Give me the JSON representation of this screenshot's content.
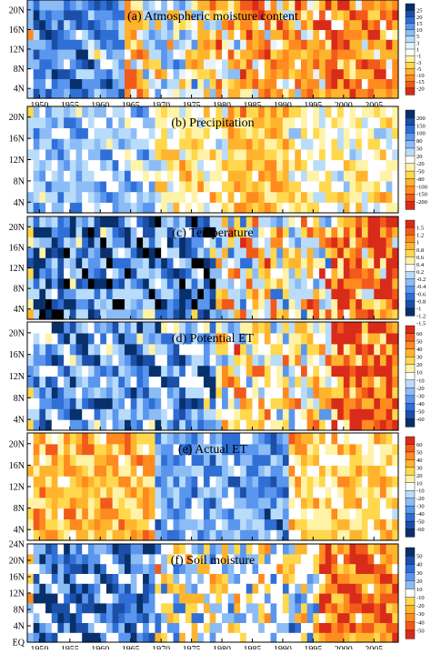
{
  "chart_data": [
    {
      "type": "heatmap",
      "title": "(a)   Atmospheric moisture content",
      "x_ticks": [
        "1950",
        "1955",
        "1960",
        "1965",
        "1970",
        "1975",
        "1980",
        "1985",
        "1990",
        "1995",
        "2000",
        "2005"
      ],
      "y_ticks": [
        "4N",
        "8N",
        "12N",
        "16N",
        "20N"
      ],
      "xlim": [
        1948,
        2009
      ],
      "ylim": [
        2,
        22
      ],
      "colorbar": [
        "25",
        "20",
        "15",
        "10",
        "5",
        "3",
        "1",
        "-1",
        "-3",
        "-5",
        "-10",
        "-15",
        "-20"
      ],
      "colors": [
        "#08306b",
        "#1c4fa8",
        "#2f6fd6",
        "#5a96ee",
        "#8cbcf5",
        "#b9dcfa",
        "#e6f3fd",
        "#ffffff",
        "#fff3a8",
        "#ffd84d",
        "#ffb42e",
        "#ff8a1f",
        "#f25a1b",
        "#d92b1a"
      ],
      "pattern": "Wet (positive, blue) 1949-1963, drying through 1965-1975, strongly negative (orange-red) 1980s-2000s especially 1997-2006",
      "period_values": [
        {
          "years": "1949-1956",
          "value": 15
        },
        {
          "years": "1957-1963",
          "value": 12
        },
        {
          "years": "1964-1966",
          "value": -8
        },
        {
          "years": "1967-1975",
          "value": 2
        },
        {
          "years": "1976-1982",
          "value": -5
        },
        {
          "years": "1983-1996",
          "value": -8
        },
        {
          "years": "1997-2008",
          "value": -12
        }
      ]
    },
    {
      "type": "heatmap",
      "title": "(b)   Precipitation",
      "x_ticks": [
        "1950",
        "1955",
        "1960",
        "1965",
        "1970",
        "1975",
        "1980",
        "1985",
        "1990",
        "1995",
        "2000",
        "2005"
      ],
      "y_ticks": [
        "4N",
        "8N",
        "12N",
        "16N",
        "20N"
      ],
      "xlim": [
        1948,
        2009
      ],
      "ylim": [
        2,
        22
      ],
      "colorbar": [
        "200",
        "150",
        "100",
        "80",
        "50",
        "20",
        "-20",
        "-50",
        "-80",
        "-100",
        "-150",
        "-200"
      ],
      "colors": [
        "#08306b",
        "#1c4fa8",
        "#2f6fd6",
        "#5a96ee",
        "#8cbcf5",
        "#b9dcfa",
        "#ffffff",
        "#fff3a8",
        "#ffd84d",
        "#ffb42e",
        "#ff8a1f",
        "#f25a1b",
        "#d92b1a"
      ],
      "pattern": "Mostly positive (blue) 1949-1968, mixed, mainly negative (yellow-red) 1970-1990, mixed afterwards",
      "period_values": [
        {
          "years": "1949-1968",
          "value": 50
        },
        {
          "years": "1969-1980",
          "value": -30
        },
        {
          "years": "1981-1990",
          "value": -80
        },
        {
          "years": "1991-2008",
          "value": -20
        }
      ]
    },
    {
      "type": "heatmap",
      "title": "(c)   Temperature",
      "x_ticks": [
        "1950",
        "1955",
        "1960",
        "1965",
        "1970",
        "1975",
        "1980",
        "1985",
        "1990",
        "1995",
        "2000",
        "2005"
      ],
      "y_ticks": [
        "4N",
        "8N",
        "12N",
        "16N",
        "20N"
      ],
      "xlim": [
        1948,
        2009
      ],
      "ylim": [
        2,
        22
      ],
      "colorbar": [
        "1.5",
        "1.2",
        "1",
        "0.8",
        "0.6",
        "0.4",
        "0.2",
        "-0.2",
        "-0.4",
        "-0.6",
        "-0.8",
        "-1",
        "-1.2",
        "-1.5"
      ],
      "colors": [
        "#d92b1a",
        "#f25a1b",
        "#ff8a1f",
        "#ffb42e",
        "#ffd84d",
        "#fff3a8",
        "#ffffff",
        "#b9dcfa",
        "#8cbcf5",
        "#5a96ee",
        "#2f6fd6",
        "#1c4fa8",
        "#08306b"
      ],
      "pattern": "Cool (blue) 1949-1978, warming from late 1970s, strongly warm (red) 1998-2008",
      "period_values": [
        {
          "years": "1949-1978",
          "value": -0.6
        },
        {
          "years": "1979-1997",
          "value": 0.4
        },
        {
          "years": "1998-2008",
          "value": 1.2
        }
      ]
    },
    {
      "type": "heatmap",
      "title": "(d)   Potential ET",
      "x_ticks": [
        "1950",
        "1955",
        "1960",
        "1965",
        "1970",
        "1975",
        "1980",
        "1985",
        "1990",
        "1995",
        "2000",
        "2005"
      ],
      "y_ticks": [
        "4N",
        "8N",
        "12N",
        "16N",
        "20N"
      ],
      "xlim": [
        1948,
        2009
      ],
      "ylim": [
        2,
        22
      ],
      "colorbar": [
        "60",
        "50",
        "40",
        "30",
        "20",
        "10",
        "-10",
        "-20",
        "-30",
        "-40",
        "-50",
        "-60"
      ],
      "colors": [
        "#d92b1a",
        "#f25a1b",
        "#ff8a1f",
        "#ffb42e",
        "#ffd84d",
        "#fff3a8",
        "#ffffff",
        "#b9dcfa",
        "#8cbcf5",
        "#5a96ee",
        "#2f6fd6",
        "#1c4fa8",
        "#08306b"
      ],
      "pattern": "Negative (blue) 1949-1978, positive patches 1980s, strongly positive (red) 1998-2008",
      "period_values": [
        {
          "years": "1949-1978",
          "value": -30
        },
        {
          "years": "1979-1997",
          "value": 10
        },
        {
          "years": "1998-2008",
          "value": 50
        }
      ]
    },
    {
      "type": "heatmap",
      "title": "(e)   Actual ET",
      "x_ticks": [
        "1950",
        "1955",
        "1960",
        "1965",
        "1970",
        "1975",
        "1980",
        "1985",
        "1990",
        "1995",
        "2000",
        "2005"
      ],
      "y_ticks": [
        "4N",
        "8N",
        "12N",
        "16N",
        "20N"
      ],
      "xlim": [
        1948,
        2009
      ],
      "ylim": [
        2,
        22
      ],
      "colorbar": [
        "60",
        "50",
        "40",
        "30",
        "20",
        "10",
        "-10",
        "-20",
        "-30",
        "-40",
        "-50",
        "-60"
      ],
      "colors": [
        "#d92b1a",
        "#f25a1b",
        "#ff8a1f",
        "#ffb42e",
        "#ffd84d",
        "#fff3a8",
        "#ffffff",
        "#b9dcfa",
        "#8cbcf5",
        "#5a96ee",
        "#2f6fd6",
        "#1c4fa8",
        "#08306b"
      ],
      "pattern": "Positive (red) 1949-1968, negative (blue) 1970-1990, mixed positive afterwards",
      "period_values": [
        {
          "years": "1949-1968",
          "value": 30
        },
        {
          "years": "1969-1990",
          "value": -30
        },
        {
          "years": "1991-2008",
          "value": 20
        }
      ]
    },
    {
      "type": "heatmap",
      "title": "(f)   Soil moisture",
      "x_ticks": [
        "1950",
        "1955",
        "1960",
        "1965",
        "1970",
        "1975",
        "1980",
        "1985",
        "1990",
        "1995",
        "2000",
        "2005"
      ],
      "y_ticks": [
        "EQ",
        "4N",
        "8N",
        "12N",
        "16N",
        "20N",
        "24N"
      ],
      "xlim": [
        1948,
        2009
      ],
      "ylim": [
        0,
        24
      ],
      "colorbar": [
        "50",
        "40",
        "30",
        "20",
        "10",
        "-10",
        "-20",
        "-30",
        "-40",
        "-50"
      ],
      "colors": [
        "#08306b",
        "#1c4fa8",
        "#2f6fd6",
        "#5a96ee",
        "#8cbcf5",
        "#ffffff",
        "#ffd84d",
        "#ffb42e",
        "#ff8a1f",
        "#f25a1b",
        "#d92b1a"
      ],
      "pattern": "Wet (blue) 1949-1968, mixed 1970-1995, strongly dry (red) 1999-2008",
      "period_values": [
        {
          "years": "1949-1968",
          "value": 30
        },
        {
          "years": "1969-1995",
          "value": 0
        },
        {
          "years": "1996-2008",
          "value": -40
        }
      ]
    }
  ]
}
